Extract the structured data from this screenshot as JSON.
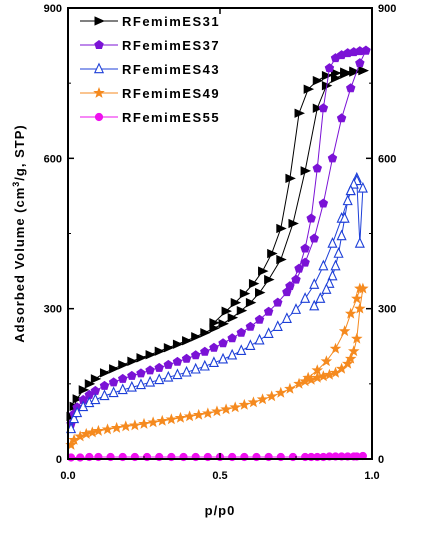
{
  "chart_data": {
    "type": "scatter",
    "xlabel": "p/p0",
    "ylabel_main": "Adsorbed Volume (cm",
    "ylabel_sup": "3",
    "ylabel_tail": "/g, STP)",
    "xlim": [
      0.0,
      1.0
    ],
    "ylim": [
      0,
      900
    ],
    "x_ticks": [
      {
        "value": 0.0,
        "label": "0.0"
      },
      {
        "value": 0.5,
        "label": "0.5"
      },
      {
        "value": 1.0,
        "label": "1.0"
      }
    ],
    "y_ticks": [
      {
        "value": 0,
        "label": "0"
      },
      {
        "value": 300,
        "label": "300"
      },
      {
        "value": 600,
        "label": "600"
      },
      {
        "value": 900,
        "label": "900"
      }
    ],
    "right_axis_mirrored": true,
    "grid": false,
    "legend_position": "top-left",
    "series": [
      {
        "name": "RFemimES31",
        "color": "#000000",
        "marker": "triangle-right",
        "filled": true,
        "adsorption": {
          "x": [
            0.01,
            0.02,
            0.03,
            0.05,
            0.07,
            0.09,
            0.12,
            0.15,
            0.18,
            0.21,
            0.24,
            0.27,
            0.3,
            0.33,
            0.36,
            0.39,
            0.42,
            0.45,
            0.48,
            0.51,
            0.54,
            0.57,
            0.6,
            0.63,
            0.66,
            0.7,
            0.74,
            0.78,
            0.82,
            0.85,
            0.88,
            0.91,
            0.94,
            0.97
          ],
          "y": [
            85,
            105,
            120,
            138,
            150,
            160,
            172,
            180,
            188,
            195,
            202,
            208,
            215,
            222,
            229,
            236,
            244,
            252,
            261,
            270,
            282,
            296,
            312,
            332,
            358,
            398,
            470,
            575,
            700,
            745,
            760,
            768,
            772,
            775
          ]
        },
        "desorption": {
          "x": [
            0.97,
            0.94,
            0.91,
            0.88,
            0.85,
            0.82,
            0.79,
            0.76,
            0.73,
            0.7,
            0.67,
            0.64,
            0.61,
            0.58,
            0.55,
            0.52,
            0.48
          ],
          "y": [
            775,
            774,
            772,
            770,
            765,
            755,
            738,
            690,
            560,
            460,
            410,
            375,
            350,
            330,
            312,
            295,
            272
          ]
        }
      },
      {
        "name": "RFemimES37",
        "color": "#7b12d6",
        "marker": "pentagon",
        "filled": true,
        "adsorption": {
          "x": [
            0.01,
            0.02,
            0.03,
            0.05,
            0.07,
            0.09,
            0.12,
            0.15,
            0.18,
            0.21,
            0.24,
            0.27,
            0.3,
            0.33,
            0.36,
            0.39,
            0.42,
            0.45,
            0.48,
            0.51,
            0.54,
            0.57,
            0.6,
            0.63,
            0.66,
            0.69,
            0.72,
            0.75,
            0.78,
            0.81,
            0.84,
            0.87,
            0.9,
            0.93,
            0.96,
            0.98
          ],
          "y": [
            70,
            90,
            103,
            118,
            128,
            136,
            146,
            153,
            160,
            166,
            171,
            177,
            182,
            188,
            194,
            200,
            207,
            214,
            222,
            231,
            241,
            252,
            264,
            278,
            294,
            312,
            333,
            358,
            392,
            440,
            510,
            600,
            680,
            740,
            790,
            815
          ]
        },
        "desorption": {
          "x": [
            0.98,
            0.96,
            0.94,
            0.92,
            0.9,
            0.88,
            0.86,
            0.84,
            0.82,
            0.8,
            0.78,
            0.76,
            0.73
          ],
          "y": [
            815,
            814,
            812,
            810,
            806,
            800,
            780,
            700,
            580,
            480,
            420,
            380,
            345
          ]
        }
      },
      {
        "name": "RFemimES43",
        "color": "#1d3fd8",
        "marker": "triangle-up",
        "filled": false,
        "adsorption": {
          "x": [
            0.01,
            0.02,
            0.03,
            0.05,
            0.07,
            0.09,
            0.12,
            0.15,
            0.18,
            0.21,
            0.24,
            0.27,
            0.3,
            0.33,
            0.36,
            0.39,
            0.42,
            0.45,
            0.48,
            0.51,
            0.54,
            0.57,
            0.6,
            0.63,
            0.66,
            0.69,
            0.72,
            0.75,
            0.78,
            0.81,
            0.84,
            0.87,
            0.9,
            0.93,
            0.95
          ],
          "y": [
            60,
            80,
            92,
            104,
            112,
            118,
            126,
            132,
            138,
            143,
            148,
            153,
            158,
            163,
            168,
            173,
            179,
            185,
            192,
            199,
            207,
            216,
            226,
            237,
            250,
            264,
            280,
            298,
            320,
            348,
            385,
            430,
            480,
            535,
            560
          ]
        },
        "desorption": {
          "x": [
            0.97,
            0.96,
            0.95,
            0.94,
            0.93,
            0.92,
            0.91,
            0.9,
            0.89,
            0.88,
            0.87,
            0.86,
            0.85,
            0.83,
            0.81
          ],
          "y": [
            540,
            430,
            555,
            548,
            535,
            515,
            480,
            445,
            410,
            385,
            365,
            350,
            338,
            320,
            305
          ]
        }
      },
      {
        "name": "RFemimES49",
        "color": "#f58a1f",
        "marker": "star",
        "filled": true,
        "adsorption": {
          "x": [
            0.01,
            0.02,
            0.04,
            0.06,
            0.08,
            0.1,
            0.13,
            0.16,
            0.19,
            0.22,
            0.25,
            0.28,
            0.31,
            0.34,
            0.37,
            0.4,
            0.43,
            0.46,
            0.49,
            0.52,
            0.55,
            0.58,
            0.61,
            0.64,
            0.67,
            0.7,
            0.73,
            0.76,
            0.79,
            0.82,
            0.85,
            0.88,
            0.91,
            0.93,
            0.95,
            0.96
          ],
          "y": [
            28,
            38,
            45,
            50,
            53,
            56,
            59,
            62,
            65,
            67,
            70,
            73,
            76,
            79,
            82,
            85,
            88,
            91,
            95,
            99,
            103,
            108,
            113,
            119,
            125,
            132,
            140,
            150,
            162,
            177,
            195,
            220,
            255,
            290,
            320,
            340
          ]
        },
        "desorption": {
          "x": [
            0.97,
            0.96,
            0.95,
            0.94,
            0.93,
            0.92,
            0.9,
            0.88,
            0.86,
            0.84,
            0.82,
            0.8,
            0.78
          ],
          "y": [
            340,
            300,
            240,
            215,
            200,
            190,
            180,
            172,
            168,
            165,
            162,
            158,
            155
          ]
        }
      },
      {
        "name": "RFemimES55",
        "color": "#ee11ee",
        "marker": "circle",
        "filled": true,
        "adsorption": {
          "x": [
            0.01,
            0.04,
            0.07,
            0.1,
            0.14,
            0.18,
            0.22,
            0.26,
            0.3,
            0.34,
            0.38,
            0.42,
            0.46,
            0.5,
            0.54,
            0.58,
            0.62,
            0.66,
            0.7,
            0.74,
            0.78,
            0.82,
            0.86,
            0.9,
            0.94,
            0.97
          ],
          "y": [
            3,
            3,
            4,
            4,
            4,
            4,
            4,
            4,
            4,
            4,
            4,
            4,
            4,
            4,
            4,
            4,
            4,
            4,
            4,
            4,
            4,
            4,
            5,
            5,
            5,
            6
          ]
        },
        "desorption": {
          "x": [
            0.95,
            0.92,
            0.88,
            0.84,
            0.8
          ],
          "y": [
            5,
            5,
            5,
            4,
            4
          ]
        }
      }
    ]
  }
}
